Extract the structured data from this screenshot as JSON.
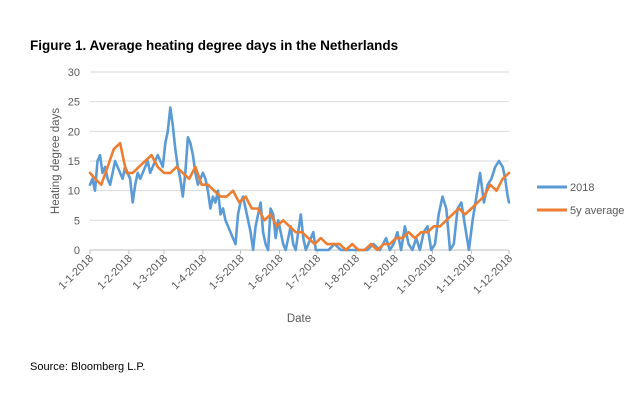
{
  "title": "Figure 1. Average heating degree days in the Netherlands",
  "source": "Source: Bloomberg L.P.",
  "colors": {
    "series_2018": "#5B9BD5",
    "series_5y": "#ED7D31",
    "grid": "#D9D9D9",
    "axis_text": "#595959"
  },
  "chart_data": {
    "type": "line",
    "title": "Figure 1. Average heating degree days in the Netherlands",
    "xlabel": "Date",
    "ylabel": "Heating degree days",
    "ylim": [
      0,
      30
    ],
    "yticks": [
      0,
      5,
      10,
      15,
      20,
      25,
      30
    ],
    "xlim": [
      "1-1-2018",
      "1-12-2018"
    ],
    "xticks": [
      "1-1-2018",
      "1-2-2018",
      "1-3-2018",
      "1-4-2018",
      "1-5-2018",
      "1-6-2018",
      "1-7-2018",
      "1-8-2018",
      "1-9-2018",
      "1-10-2018",
      "1-11-2018",
      "1-12-2018"
    ],
    "grid": true,
    "legend_position": "right",
    "series": [
      {
        "name": "2018",
        "x": [
          "1-1-2018",
          "3-1-2018",
          "5-1-2018",
          "7-1-2018",
          "9-1-2018",
          "11-1-2018",
          "13-1-2018",
          "15-1-2018",
          "17-1-2018",
          "19-1-2018",
          "21-1-2018",
          "23-1-2018",
          "25-1-2018",
          "27-1-2018",
          "29-1-2018",
          "31-1-2018",
          "2-2-2018",
          "4-2-2018",
          "6-2-2018",
          "8-2-2018",
          "10-2-2018",
          "12-2-2018",
          "14-2-2018",
          "16-2-2018",
          "18-2-2018",
          "20-2-2018",
          "22-2-2018",
          "24-2-2018",
          "26-2-2018",
          "28-2-2018",
          "2-3-2018",
          "4-3-2018",
          "6-3-2018",
          "8-3-2018",
          "10-3-2018",
          "12-3-2018",
          "14-3-2018",
          "16-3-2018",
          "18-3-2018",
          "20-3-2018",
          "22-3-2018",
          "24-3-2018",
          "26-3-2018",
          "28-3-2018",
          "30-3-2018",
          "1-4-2018",
          "3-4-2018",
          "5-4-2018",
          "7-4-2018",
          "9-4-2018",
          "11-4-2018",
          "13-4-2018",
          "15-4-2018",
          "17-4-2018",
          "19-4-2018",
          "21-4-2018",
          "23-4-2018",
          "25-4-2018",
          "27-4-2018",
          "29-4-2018",
          "1-5-2018",
          "3-5-2018",
          "5-5-2018",
          "7-5-2018",
          "9-5-2018",
          "11-5-2018",
          "13-5-2018",
          "15-5-2018",
          "17-5-2018",
          "19-5-2018",
          "21-5-2018",
          "23-5-2018",
          "25-5-2018",
          "27-5-2018",
          "29-5-2018",
          "31-5-2018",
          "2-6-2018",
          "4-6-2018",
          "6-6-2018",
          "8-6-2018",
          "10-6-2018",
          "12-6-2018",
          "14-6-2018",
          "16-6-2018",
          "18-6-2018",
          "20-6-2018",
          "22-6-2018",
          "24-6-2018",
          "26-6-2018",
          "28-6-2018",
          "30-6-2018",
          "5-7-2018",
          "10-7-2018",
          "15-7-2018",
          "20-7-2018",
          "25-7-2018",
          "30-7-2018",
          "5-8-2018",
          "10-8-2018",
          "15-8-2018",
          "20-8-2018",
          "25-8-2018",
          "28-8-2018",
          "31-8-2018",
          "3-9-2018",
          "6-9-2018",
          "9-9-2018",
          "12-9-2018",
          "15-9-2018",
          "18-9-2018",
          "21-9-2018",
          "24-9-2018",
          "27-9-2018",
          "30-9-2018",
          "3-10-2018",
          "6-10-2018",
          "9-10-2018",
          "12-10-2018",
          "15-10-2018",
          "18-10-2018",
          "21-10-2018",
          "24-10-2018",
          "27-10-2018",
          "30-10-2018",
          "2-11-2018",
          "5-11-2018",
          "8-11-2018",
          "11-11-2018",
          "14-11-2018",
          "17-11-2018",
          "20-11-2018",
          "23-11-2018",
          "26-11-2018",
          "28-11-2018",
          "30-11-2018",
          "1-12-2018"
        ],
        "y": [
          11,
          12,
          10,
          15,
          16,
          13,
          14,
          12,
          11,
          13,
          15,
          14,
          13,
          12,
          14,
          13,
          12,
          8,
          11,
          13,
          12,
          13,
          14,
          15,
          13,
          14,
          15,
          16,
          15,
          14,
          18,
          20,
          24,
          21,
          17,
          14,
          12,
          9,
          13,
          19,
          18,
          16,
          13,
          11,
          12,
          13,
          12,
          10,
          7,
          9,
          8,
          10,
          6,
          7,
          5,
          4,
          3,
          2,
          1,
          6,
          8,
          9,
          7,
          5,
          3,
          0,
          4,
          6,
          8,
          3,
          1,
          0,
          7,
          6,
          2,
          5,
          3,
          1,
          0,
          2,
          4,
          1,
          0,
          3,
          6,
          2,
          0,
          1,
          2,
          3,
          0,
          0,
          0,
          1,
          0,
          0,
          0,
          0,
          0,
          1,
          0,
          2,
          0,
          1,
          3,
          0,
          4,
          1,
          0,
          2,
          0,
          3,
          4,
          0,
          1,
          6,
          9,
          7,
          0,
          1,
          7,
          8,
          4,
          0,
          5,
          9,
          13,
          8,
          11,
          12,
          14,
          15,
          14,
          12,
          9,
          8
        ]
      },
      {
        "name": "5y average",
        "x": [
          "1-1-2018",
          "5-1-2018",
          "10-1-2018",
          "15-1-2018",
          "20-1-2018",
          "25-1-2018",
          "30-1-2018",
          "4-2-2018",
          "9-2-2018",
          "14-2-2018",
          "19-2-2018",
          "24-2-2018",
          "1-3-2018",
          "6-3-2018",
          "11-3-2018",
          "16-3-2018",
          "21-3-2018",
          "26-3-2018",
          "31-3-2018",
          "5-4-2018",
          "10-4-2018",
          "15-4-2018",
          "20-4-2018",
          "25-4-2018",
          "30-4-2018",
          "5-5-2018",
          "10-5-2018",
          "15-5-2018",
          "20-5-2018",
          "25-5-2018",
          "30-5-2018",
          "4-6-2018",
          "9-6-2018",
          "14-6-2018",
          "19-6-2018",
          "24-6-2018",
          "29-6-2018",
          "4-7-2018",
          "9-7-2018",
          "14-7-2018",
          "19-7-2018",
          "24-7-2018",
          "29-7-2018",
          "3-8-2018",
          "8-8-2018",
          "13-8-2018",
          "18-8-2018",
          "23-8-2018",
          "28-8-2018",
          "2-9-2018",
          "7-9-2018",
          "12-9-2018",
          "17-9-2018",
          "22-9-2018",
          "27-9-2018",
          "2-10-2018",
          "7-10-2018",
          "12-10-2018",
          "17-10-2018",
          "22-10-2018",
          "27-10-2018",
          "1-11-2018",
          "6-11-2018",
          "11-11-2018",
          "16-11-2018",
          "21-11-2018",
          "26-11-2018",
          "1-12-2018"
        ],
        "y": [
          13,
          12,
          11,
          14,
          17,
          18,
          13,
          13,
          14,
          15,
          16,
          14,
          13,
          13,
          14,
          13,
          12,
          14,
          11,
          11,
          10,
          9,
          9,
          10,
          8,
          9,
          7,
          7,
          5,
          6,
          4,
          5,
          4,
          3,
          3,
          2,
          1,
          2,
          1,
          1,
          1,
          0,
          1,
          0,
          0,
          1,
          0,
          1,
          1,
          2,
          2,
          3,
          2,
          3,
          3,
          4,
          4,
          5,
          6,
          7,
          6,
          7,
          8,
          9,
          11,
          10,
          12,
          13
        ]
      }
    ]
  }
}
